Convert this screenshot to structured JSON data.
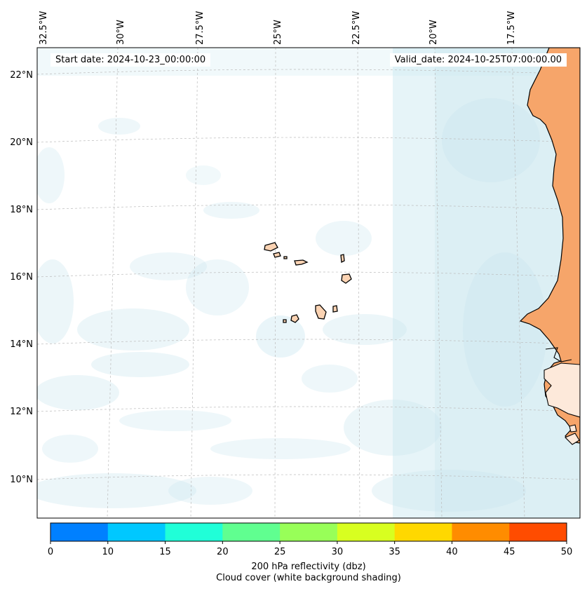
{
  "annotations": {
    "start_date": "Start date: 2024-10-23_00:00:00",
    "valid_date": "Valid_date: 2024-10-25T07:00:00.00"
  },
  "axes": {
    "longitude_ticks": [
      "32.5°W",
      "30°W",
      "27.5°W",
      "25°W",
      "22.5°W",
      "20°W",
      "17.5°W"
    ],
    "latitude_ticks": [
      "22°N",
      "20°N",
      "18°N",
      "16°N",
      "14°N",
      "12°N",
      "10°N"
    ]
  },
  "colorbar": {
    "tick_labels": [
      "0",
      "10",
      "15",
      "20",
      "25",
      "30",
      "35",
      "40",
      "45",
      "50"
    ],
    "colors": [
      "#0080ff",
      "#00c8ff",
      "#20ffd8",
      "#60ff90",
      "#98ff58",
      "#d8ff20",
      "#ffd800",
      "#ff8c00",
      "#ff4c00"
    ],
    "label_line1": "200 hPa reflectivity (dbz)",
    "label_line2": "Cloud cover (white background shading)"
  },
  "colors": {
    "land": "#f6a56a",
    "island_land": "#fbd3b3",
    "cloud": "#c8e6ef",
    "coastline": "#000000",
    "grid": "#bbbbbb"
  }
}
